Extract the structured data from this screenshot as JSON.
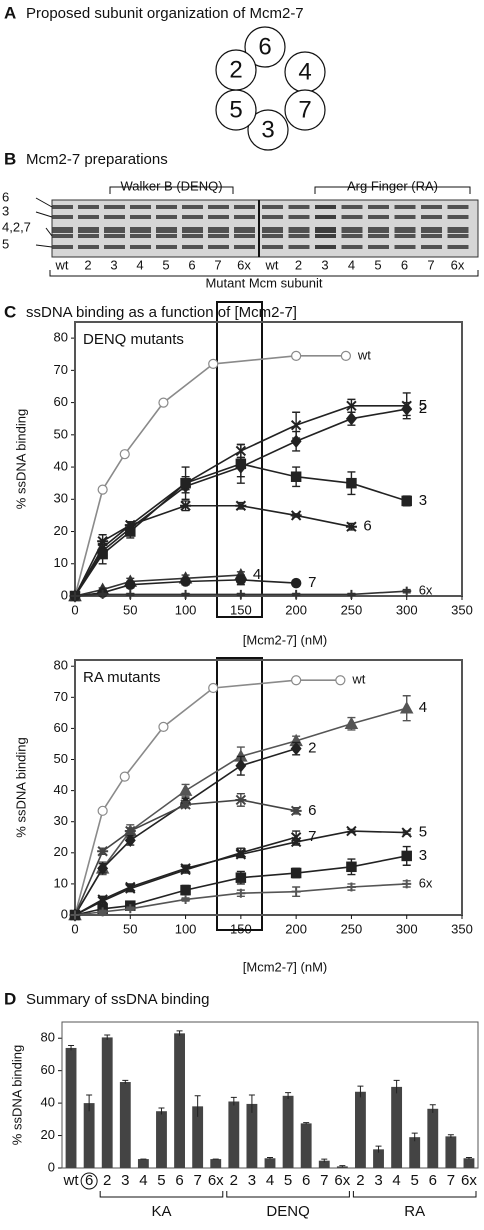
{
  "panels": {
    "a": {
      "letter": "A",
      "title": "Proposed subunit organization of Mcm2-7",
      "ring": [
        "6",
        "4",
        "7",
        "3",
        "5",
        "2"
      ]
    },
    "b": {
      "letter": "B",
      "title": "Mcm2-7 preparations",
      "band_labels": [
        "6",
        "3",
        "4,2,7",
        "5"
      ],
      "groups": [
        "Walker B (DENQ)",
        "Arg Finger (RA)"
      ],
      "lanes": [
        "wt",
        "2",
        "3",
        "4",
        "5",
        "6",
        "7",
        "6x",
        "wt",
        "2",
        "3",
        "4",
        "5",
        "6",
        "7",
        "6x"
      ],
      "footer": "Mutant Mcm subunit"
    },
    "c": {
      "letter": "C",
      "title": "ssDNA binding as a function of [Mcm2-7]"
    },
    "d": {
      "letter": "D",
      "title": "Summary of ssDNA binding"
    }
  },
  "chart_data": [
    {
      "type": "line",
      "annotation": "DENQ mutants",
      "xlabel": "[Mcm2-7] (nM)",
      "ylabel": "% ssDNA binding",
      "xlim": [
        0,
        350
      ],
      "xticks": [
        0,
        50,
        100,
        150,
        200,
        250,
        300,
        350
      ],
      "ylim": [
        0,
        85
      ],
      "yticks": [
        0,
        10,
        20,
        30,
        40,
        50,
        60,
        70,
        80
      ],
      "series": [
        {
          "name": "wt",
          "color": "#8a8a8a",
          "marker": "circle-open",
          "x": [
            0,
            25,
            45,
            80,
            125,
            200,
            245
          ],
          "values": [
            0,
            33,
            44,
            60,
            72,
            74.5,
            74.5
          ]
        },
        {
          "name": "5",
          "color": "#222222",
          "marker": "cross",
          "x": [
            0,
            25,
            50,
            100,
            150,
            200,
            250,
            300
          ],
          "values": [
            0,
            15,
            22,
            35,
            45,
            53,
            59,
            59
          ],
          "errors": [
            0,
            2,
            1,
            2,
            2,
            4,
            2,
            4
          ]
        },
        {
          "name": "2",
          "color": "#222222",
          "marker": "diamond",
          "x": [
            0,
            25,
            50,
            100,
            150,
            200,
            250,
            300
          ],
          "values": [
            0,
            14,
            21,
            34,
            40,
            48,
            55,
            58
          ],
          "errors": [
            0,
            2,
            1,
            2,
            3,
            3,
            2,
            2
          ]
        },
        {
          "name": "3",
          "color": "#222222",
          "marker": "square",
          "x": [
            0,
            25,
            50,
            100,
            150,
            200,
            250,
            300
          ],
          "values": [
            0,
            13,
            20,
            35,
            41,
            37,
            35,
            29.5
          ],
          "errors": [
            0,
            3,
            2,
            5,
            6,
            3,
            3.5,
            1.5
          ]
        },
        {
          "name": "6",
          "color": "#222222",
          "marker": "asterisk",
          "x": [
            0,
            25,
            50,
            100,
            150,
            200,
            250
          ],
          "values": [
            0,
            17,
            22,
            28,
            28,
            25,
            21.5
          ],
          "errors": [
            0,
            2,
            1,
            1.5,
            1,
            0.5,
            1
          ]
        },
        {
          "name": "4",
          "color": "#333333",
          "marker": "triangle",
          "x": [
            0,
            25,
            50,
            100,
            150
          ],
          "values": [
            0,
            2,
            4.5,
            5.5,
            6.5
          ],
          "errors": [
            0,
            0.5,
            1,
            1,
            1
          ]
        },
        {
          "name": "7",
          "color": "#222222",
          "marker": "circle",
          "x": [
            0,
            25,
            50,
            100,
            150,
            200
          ],
          "values": [
            0,
            1,
            3.5,
            4.5,
            5,
            4
          ],
          "errors": [
            0,
            0.5,
            1,
            1,
            1.5,
            0.5
          ]
        },
        {
          "name": "6x",
          "color": "#333333",
          "marker": "plus",
          "x": [
            0,
            25,
            50,
            100,
            150,
            200,
            250,
            300
          ],
          "values": [
            0,
            0.5,
            0.5,
            0.5,
            0.5,
            0.5,
            0.5,
            1.5
          ],
          "errors": [
            0,
            0.3,
            0.3,
            0.3,
            0.3,
            0.3,
            0.3,
            0.5
          ]
        }
      ]
    },
    {
      "type": "line",
      "annotation": "RA mutants",
      "xlabel": "[Mcm2-7] (nM)",
      "ylabel": "% ssDNA binding",
      "xlim": [
        0,
        350
      ],
      "xticks": [
        0,
        50,
        100,
        150,
        200,
        250,
        300,
        350
      ],
      "ylim": [
        0,
        82
      ],
      "yticks": [
        0,
        10,
        20,
        30,
        40,
        50,
        60,
        70,
        80
      ],
      "series": [
        {
          "name": "wt",
          "color": "#8a8a8a",
          "marker": "circle-open",
          "x": [
            0,
            25,
            45,
            80,
            125,
            200,
            240
          ],
          "values": [
            0,
            33.5,
            44.5,
            60.5,
            73,
            75.5,
            75.5
          ]
        },
        {
          "name": "4",
          "color": "#555555",
          "marker": "triangle",
          "x": [
            0,
            25,
            50,
            100,
            150,
            200,
            250,
            300
          ],
          "values": [
            0,
            15,
            27,
            40,
            51,
            56,
            61.5,
            66.5
          ],
          "errors": [
            0,
            2,
            2,
            2,
            3,
            1.5,
            2,
            4
          ]
        },
        {
          "name": "2",
          "color": "#222222",
          "marker": "diamond",
          "x": [
            0,
            25,
            50,
            100,
            150,
            200
          ],
          "values": [
            0,
            15,
            24,
            36,
            48,
            53.5
          ],
          "errors": [
            0,
            1.5,
            1.5,
            1.5,
            3,
            2
          ]
        },
        {
          "name": "6",
          "color": "#444444",
          "marker": "asterisk",
          "x": [
            0,
            25,
            50,
            100,
            150,
            200
          ],
          "values": [
            0,
            20.5,
            27,
            35.5,
            37,
            33.5
          ],
          "errors": [
            0,
            1,
            1,
            1,
            2,
            1
          ]
        },
        {
          "name": "5",
          "color": "#222222",
          "marker": "cross",
          "x": [
            0,
            25,
            50,
            100,
            150,
            200,
            250,
            300
          ],
          "values": [
            0,
            5,
            9,
            15,
            19.5,
            23.5,
            27,
            26.5
          ],
          "errors": [
            0,
            1,
            1,
            1,
            1,
            1,
            0.5,
            0.5
          ]
        },
        {
          "name": "7",
          "color": "#222222",
          "marker": "cross",
          "x": [
            0,
            25,
            50,
            100,
            150,
            200
          ],
          "values": [
            0,
            4.5,
            8.5,
            14.5,
            20,
            25
          ],
          "errors": [
            0,
            1,
            1,
            1,
            1.5,
            2
          ]
        },
        {
          "name": "3",
          "color": "#222222",
          "marker": "square",
          "x": [
            0,
            25,
            50,
            100,
            150,
            200,
            250,
            300
          ],
          "values": [
            0,
            2,
            3,
            8,
            12,
            13.5,
            15.5,
            19
          ],
          "errors": [
            0,
            1,
            1,
            1.5,
            2,
            1.5,
            2.5,
            3
          ]
        },
        {
          "name": "6x",
          "color": "#555555",
          "marker": "plus",
          "x": [
            0,
            25,
            50,
            100,
            150,
            200,
            250,
            300
          ],
          "values": [
            0,
            1,
            2,
            5,
            7,
            7.5,
            9,
            10
          ],
          "errors": [
            0,
            0.5,
            0.5,
            0.5,
            1,
            1.5,
            1,
            1
          ]
        }
      ]
    },
    {
      "type": "bar",
      "ylabel": "% ssDNA binding",
      "color": "#444444",
      "ylim": [
        0,
        90
      ],
      "yticks": [
        0,
        20,
        40,
        60,
        80
      ],
      "categories": [
        "wt",
        "6",
        "2",
        "3",
        "4",
        "5",
        "6",
        "7",
        "6x",
        "2",
        "3",
        "4",
        "5",
        "6",
        "7",
        "6x",
        "2",
        "3",
        "4",
        "5",
        "6",
        "7",
        "6x"
      ],
      "values": [
        74,
        40,
        80.5,
        53,
        5.5,
        35,
        83,
        38,
        5.5,
        41,
        39.5,
        6,
        44.5,
        27.5,
        4.5,
        1,
        47,
        11.5,
        50,
        19,
        36.5,
        19.5,
        6
      ],
      "errors": [
        1.5,
        5,
        1.5,
        1,
        0,
        2,
        1.5,
        6.5,
        0,
        2.5,
        5.5,
        0.5,
        2,
        0.5,
        1,
        0.5,
        3.5,
        2,
        4,
        2.5,
        2.5,
        1,
        0.5
      ],
      "group_labels": [
        "KA",
        "DENQ",
        "RA"
      ]
    }
  ]
}
